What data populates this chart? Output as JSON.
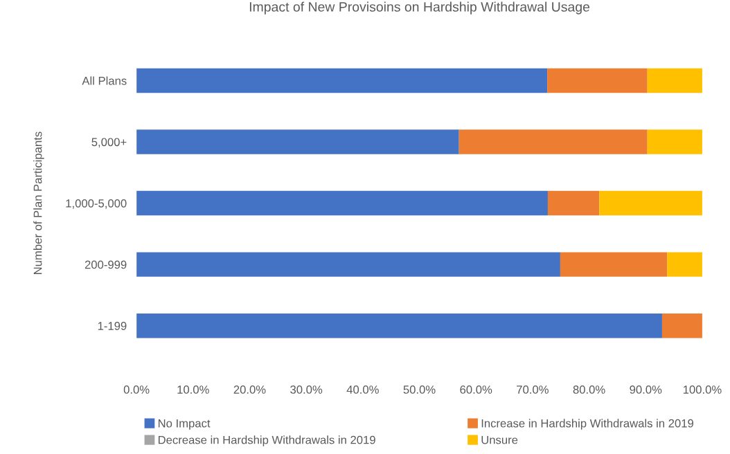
{
  "chart_data": {
    "type": "bar",
    "orientation": "horizontal",
    "stacked": true,
    "title": "Impact of New Provisoins on Hardship Withdrawal Usage",
    "ylabel": "Number of Plan Participants",
    "categories": [
      "All Plans",
      "5,000+",
      "1,000-5,000",
      "200-999",
      "1-199"
    ],
    "series": [
      {
        "name": "No Impact",
        "color": "#4472c4",
        "values": [
          72.6,
          57.0,
          72.7,
          74.9,
          92.9
        ]
      },
      {
        "name": "Increase in Hardship Withdrawals in 2019",
        "color": "#ed7d31",
        "values": [
          17.7,
          33.3,
          9.1,
          18.9,
          7.1
        ]
      },
      {
        "name": "Decrease in Hardship Withdrawals in 2019",
        "color": "#a5a5a5",
        "values": [
          0,
          0,
          0,
          0,
          0
        ]
      },
      {
        "name": "Unsure",
        "color": "#ffc000",
        "values": [
          9.7,
          9.7,
          18.2,
          6.2,
          0
        ]
      }
    ],
    "xlim": [
      0,
      100
    ],
    "xticks": [
      {
        "value": 0,
        "label": "0.0%"
      },
      {
        "value": 10,
        "label": "10.0%"
      },
      {
        "value": 20,
        "label": "20.0%"
      },
      {
        "value": 30,
        "label": "30.0%"
      },
      {
        "value": 40,
        "label": "40.0%"
      },
      {
        "value": 50,
        "label": "50.0%"
      },
      {
        "value": 60,
        "label": "60.0%"
      },
      {
        "value": 70,
        "label": "70.0%"
      },
      {
        "value": 80,
        "label": "80.0%"
      },
      {
        "value": 90,
        "label": "90.0%"
      },
      {
        "value": 100,
        "label": "100.0%"
      }
    ],
    "legend": "bottom",
    "grid": false
  }
}
